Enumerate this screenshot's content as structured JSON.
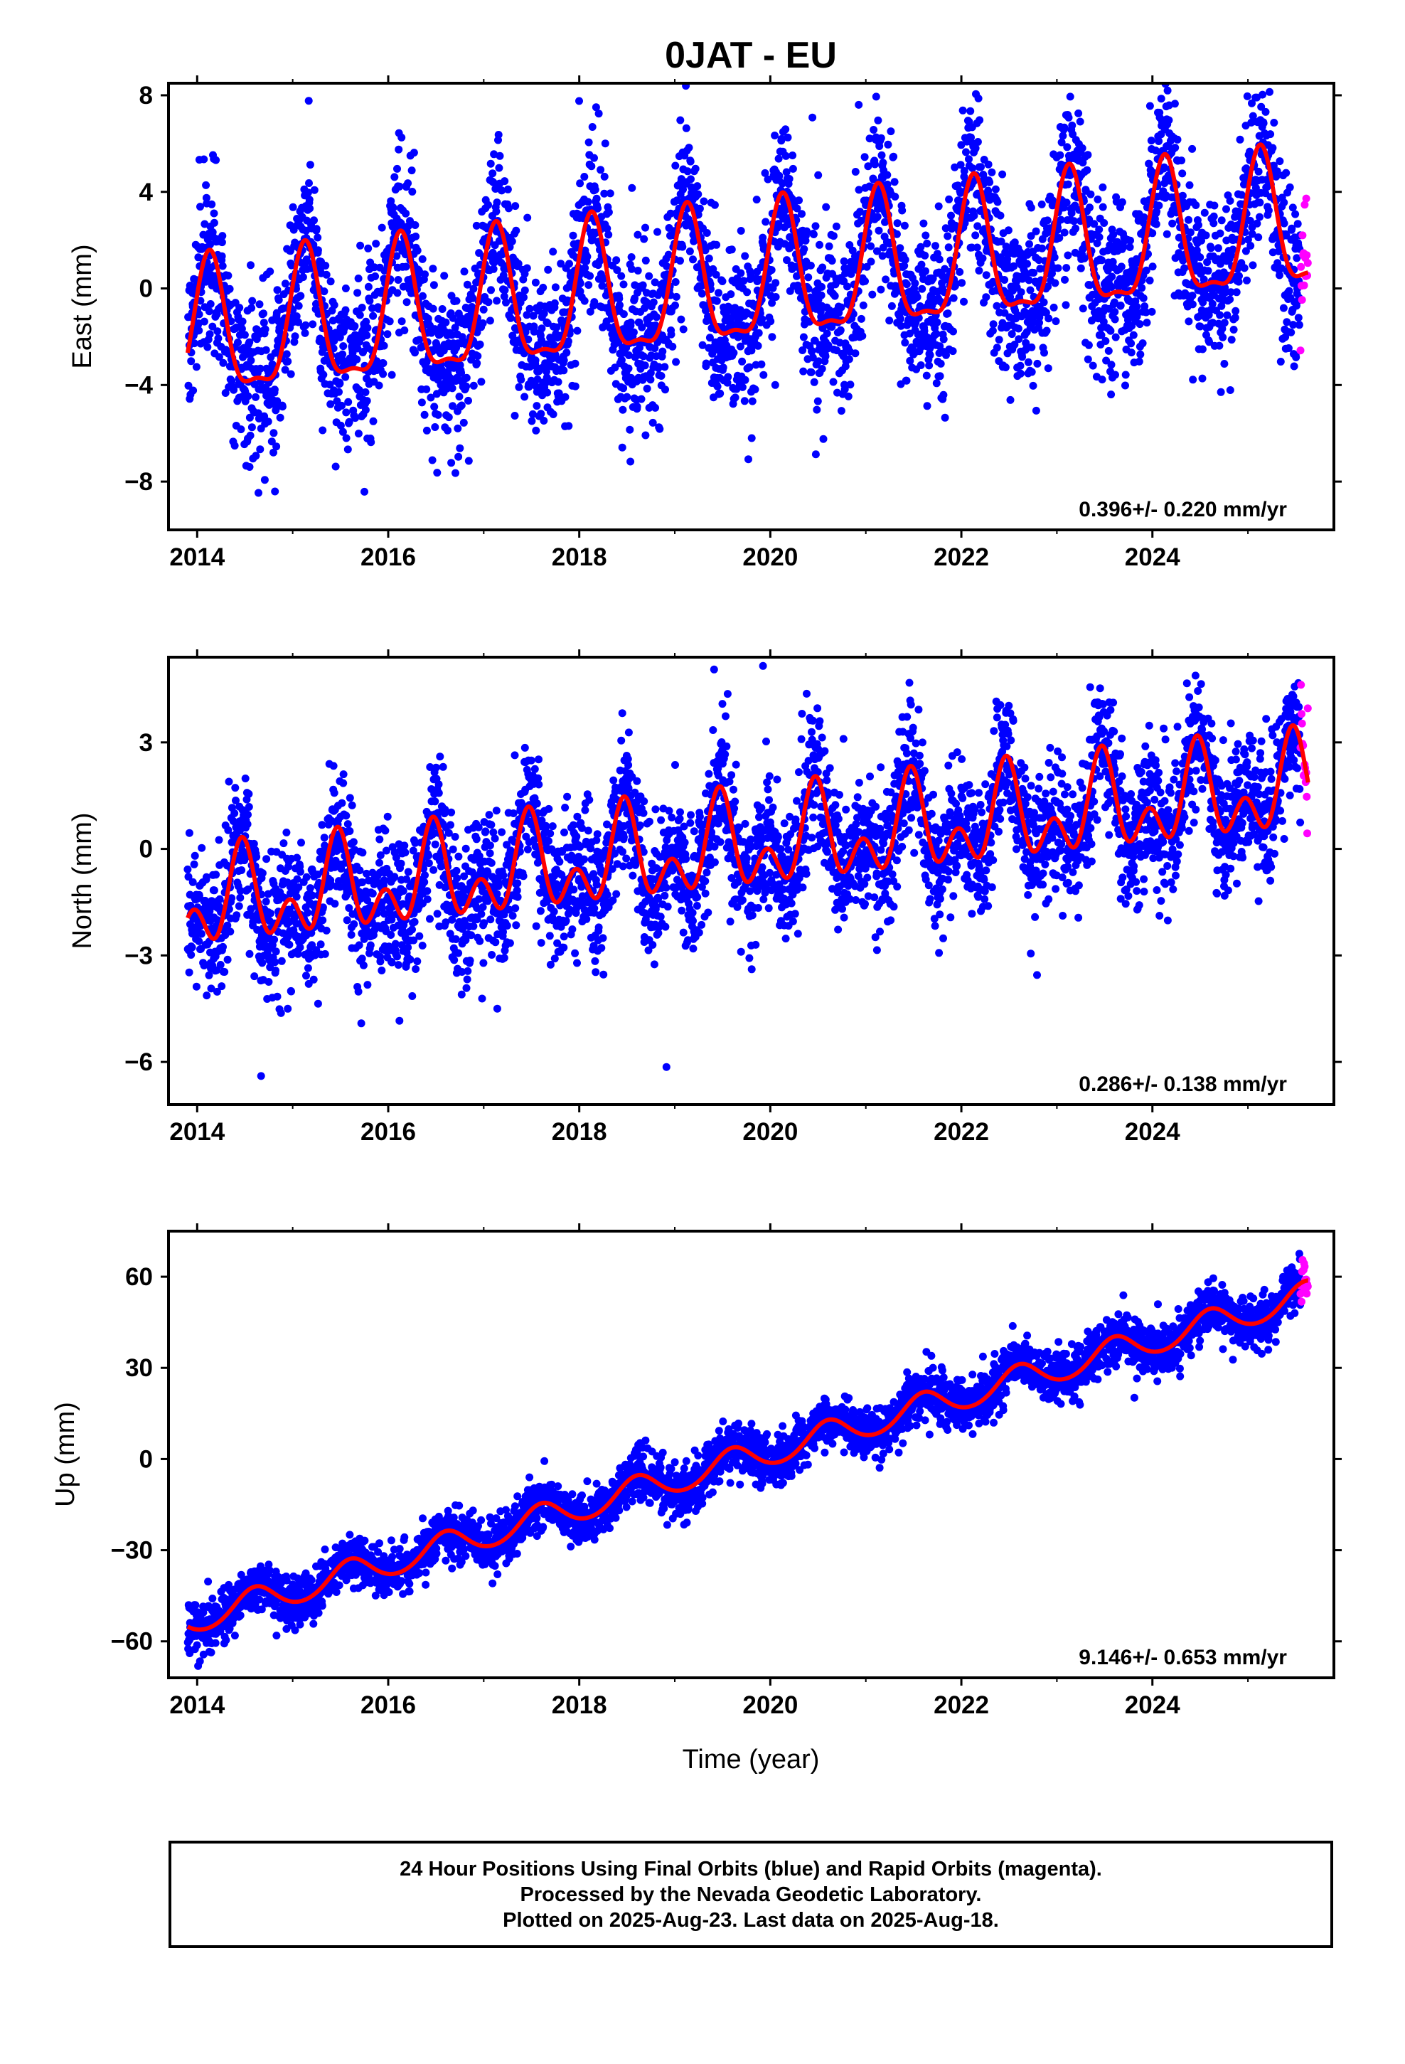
{
  "title": "0JAT - EU",
  "xlabel": "Time (year)",
  "notes": [
    "24 Hour Positions Using Final Orbits (blue) and Rapid Orbits (magenta).",
    "Processed by the Nevada Geodetic Laboratory.",
    "Plotted on 2025-Aug-23. Last data on 2025-Aug-18."
  ],
  "colors": {
    "final": "#0000ff",
    "rapid": "#ff00ff",
    "model": "#ff0000",
    "axis": "#000000"
  },
  "chart_data": [
    {
      "type": "scatter",
      "component": "east",
      "ylabel": "East (mm)",
      "xlim": [
        2013.7,
        2025.9
      ],
      "ylim": [
        -10,
        8.5
      ],
      "xticks": [
        2014,
        2016,
        2018,
        2020,
        2022,
        2024
      ],
      "yticks": [
        -8,
        -4,
        0,
        4,
        8
      ],
      "rate_label": "0.396+/- 0.220 mm/yr",
      "data_start": 2013.9,
      "data_end": 2025.63,
      "rapid_start": 2025.55,
      "model": {
        "offset": -2.1,
        "rate": 0.396,
        "annual_amp": 2.75,
        "annual_phase_peak": 2023.13,
        "semi_amp": 0.9,
        "semi_phase_peak": 2023.13,
        "scatter_sd": 1.7
      }
    },
    {
      "type": "scatter",
      "component": "north",
      "ylabel": "North (mm)",
      "xlim": [
        2013.7,
        2025.9
      ],
      "ylim": [
        -7.2,
        5.4
      ],
      "xticks": [
        2014,
        2016,
        2018,
        2020,
        2022,
        2024
      ],
      "yticks": [
        -6,
        -3,
        0,
        3
      ],
      "rate_label": "0.286+/- 0.138 mm/yr",
      "data_start": 2013.9,
      "data_end": 2025.63,
      "rapid_start": 2025.55,
      "model": {
        "offset": -1.6,
        "rate": 0.286,
        "annual_amp": 0.95,
        "annual_phase_peak": 2023.47,
        "semi_amp": 0.85,
        "semi_phase_peak": 2023.47,
        "scatter_sd": 0.95
      }
    },
    {
      "type": "scatter",
      "component": "up",
      "ylabel": "Up (mm)",
      "xlim": [
        2013.7,
        2025.9
      ],
      "ylim": [
        -72,
        75
      ],
      "xticks": [
        2014,
        2016,
        2018,
        2020,
        2022,
        2024
      ],
      "yticks": [
        -60,
        -30,
        0,
        30,
        60
      ],
      "rate_label": "9.146+/- 0.653 mm/yr",
      "data_start": 2013.9,
      "data_end": 2025.63,
      "rapid_start": 2025.55,
      "model": {
        "offset": -52.5,
        "rate": 9.146,
        "annual_amp": 4.6,
        "annual_phase_peak": 2023.6,
        "semi_amp": 0.4,
        "semi_phase_peak": 2023.6,
        "scatter_sd": 4.0
      }
    }
  ]
}
